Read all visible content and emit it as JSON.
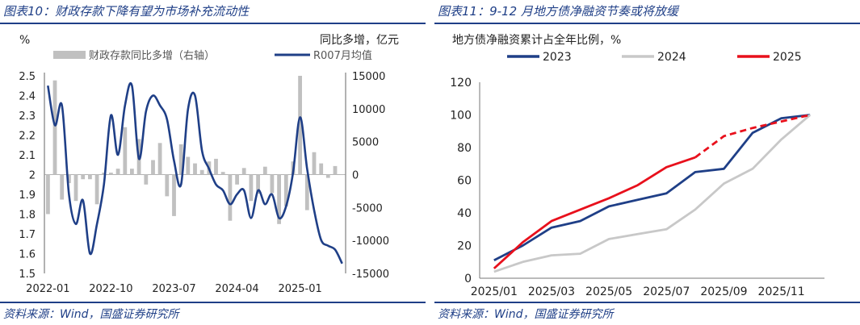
{
  "left_panel": {
    "title": "图表10：财政存款下降有望为市场补充流动性",
    "source": "资料来源：Wind，国盛证券研究所"
  },
  "right_panel": {
    "title": "图表11：9-12 月地方债净融资节奏或将放缓",
    "source": "资料来源：Wind，国盛证券研究所"
  },
  "chart_data": [
    {
      "type": "bar+line",
      "title": "",
      "y_unit_left": "%",
      "y_unit_right": "同比多增，亿元",
      "legend": {
        "bar": "财政存款同比多增（右轴）",
        "line": "R007月均值"
      },
      "colors": {
        "bar": "#c0c0c0",
        "line": "#1f3f87"
      },
      "x_ticks": [
        "2022-01",
        "2022-10",
        "2023-07",
        "2024-04",
        "2025-01"
      ],
      "x_tick_index": [
        0,
        9,
        18,
        27,
        36
      ],
      "ylim_left": [
        1.5,
        2.5
      ],
      "yticks_left": [
        "2.5",
        "2.4",
        "2.3",
        "2.2",
        "2.1",
        "2",
        "1.9",
        "1.8",
        "1.7",
        "1.6",
        "1.5"
      ],
      "ylim_right": [
        -15000,
        15000
      ],
      "yticks_right": [
        "15000",
        "10000",
        "5000",
        "0",
        "-5000",
        "-10000",
        "-15000"
      ],
      "months": [
        "2022-01",
        "2022-02",
        "2022-03",
        "2022-04",
        "2022-05",
        "2022-06",
        "2022-07",
        "2022-08",
        "2022-09",
        "2022-10",
        "2022-11",
        "2022-12",
        "2023-01",
        "2023-02",
        "2023-03",
        "2023-04",
        "2023-05",
        "2023-06",
        "2023-07",
        "2023-08",
        "2023-09",
        "2023-10",
        "2023-11",
        "2023-12",
        "2024-01",
        "2024-02",
        "2024-03",
        "2024-04",
        "2024-05",
        "2024-06",
        "2024-07",
        "2024-08",
        "2024-09",
        "2024-10",
        "2024-11",
        "2024-12",
        "2025-01",
        "2025-02",
        "2025-03",
        "2025-04",
        "2025-05",
        "2025-06",
        "2025-07"
      ],
      "bar_values": [
        -6000,
        14300,
        -3800,
        -1300,
        -4000,
        -700,
        -700,
        -4500,
        300,
        300,
        900,
        7200,
        900,
        5400,
        -1500,
        2200,
        4800,
        -3300,
        -6300,
        4600,
        2700,
        1700,
        700,
        2000,
        2400,
        400,
        -7000,
        -1500,
        1000,
        -4000,
        -2900,
        1200,
        -2800,
        -7500,
        -4800,
        2000,
        15000,
        -5400,
        3400,
        1700,
        -500,
        1300,
        0
      ],
      "line_values": [
        2.45,
        2.25,
        2.35,
        1.9,
        1.75,
        1.87,
        1.6,
        1.75,
        1.95,
        2.3,
        2.1,
        2.35,
        2.45,
        2.08,
        2.32,
        2.4,
        2.35,
        2.28,
        2.07,
        1.95,
        2.33,
        2.4,
        2.12,
        2.03,
        1.95,
        1.92,
        1.85,
        1.9,
        1.92,
        1.78,
        1.92,
        1.85,
        1.9,
        1.78,
        1.84,
        2.01,
        2.29,
        2.03,
        1.82,
        1.67,
        1.64,
        1.62,
        1.55
      ]
    },
    {
      "type": "line",
      "title": "地方债净融资累计占全年比例，%",
      "ylim": [
        0,
        120
      ],
      "yticks": [
        "120",
        "100",
        "80",
        "60",
        "40",
        "20",
        "0"
      ],
      "x_ticks": [
        "2025/01",
        "2025/03",
        "2025/05",
        "2025/07",
        "2025/09",
        "2025/11"
      ],
      "x_tick_index": [
        0,
        2,
        4,
        6,
        8,
        10
      ],
      "series": [
        {
          "name": "2023",
          "color": "#1f3f87",
          "values": [
            11,
            20,
            31,
            35,
            44,
            48,
            52,
            65,
            67,
            89,
            98,
            100
          ]
        },
        {
          "name": "2024",
          "color": "#c8c8c8",
          "values": [
            4,
            10,
            14,
            15,
            24,
            27,
            30,
            42,
            58,
            67,
            85,
            100
          ]
        },
        {
          "name": "2025",
          "color": "#e8101c",
          "values": [
            6,
            22,
            35,
            42,
            49,
            57,
            68,
            74,
            87,
            92,
            96,
            100
          ],
          "solid_until_index": 7
        }
      ]
    }
  ]
}
